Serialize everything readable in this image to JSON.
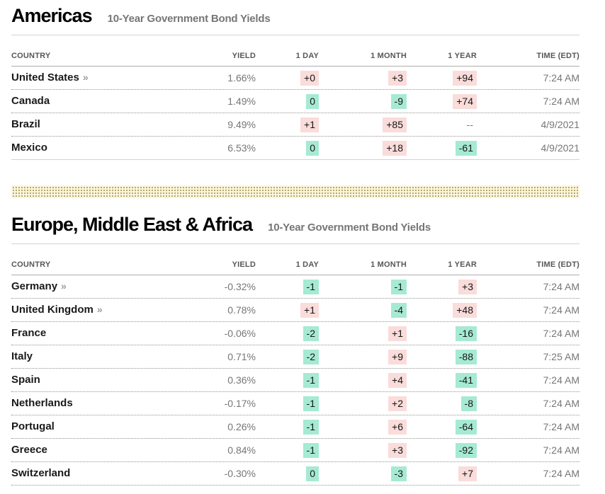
{
  "link_arrow": "»",
  "colors": {
    "increase_badge_bg": "#fadcda",
    "decrease_badge_bg": "#a6ead3",
    "divider_bg": "#fbf5dc",
    "divider_dot": "#a89c58"
  },
  "sections": [
    {
      "title": "Americas",
      "subtitle": "10-Year Government Bond Yields",
      "columns": [
        "COUNTRY",
        "YIELD",
        "1 DAY",
        "1 MONTH",
        "1 YEAR",
        "TIME (EDT)"
      ],
      "rows": [
        {
          "country": "United States",
          "has_link": true,
          "yield": "1.66%",
          "change_1day": {
            "text": "+0",
            "tone": "up"
          },
          "change_1month": {
            "text": "+3",
            "tone": "up"
          },
          "change_1year": {
            "text": "+94",
            "tone": "up"
          },
          "time": "7:24 AM"
        },
        {
          "country": "Canada",
          "has_link": false,
          "yield": "1.49%",
          "change_1day": {
            "text": "0",
            "tone": "down"
          },
          "change_1month": {
            "text": "-9",
            "tone": "down"
          },
          "change_1year": {
            "text": "+74",
            "tone": "up"
          },
          "time": "7:24 AM"
        },
        {
          "country": "Brazil",
          "has_link": false,
          "yield": "9.49%",
          "change_1day": {
            "text": "+1",
            "tone": "up"
          },
          "change_1month": {
            "text": "+85",
            "tone": "up"
          },
          "change_1year": {
            "text": "--",
            "tone": "none"
          },
          "time": "4/9/2021"
        },
        {
          "country": "Mexico",
          "has_link": false,
          "yield": "6.53%",
          "change_1day": {
            "text": "0",
            "tone": "down"
          },
          "change_1month": {
            "text": "+18",
            "tone": "up"
          },
          "change_1year": {
            "text": "-61",
            "tone": "down"
          },
          "time": "4/9/2021"
        }
      ],
      "solid_bottom_border": true
    },
    {
      "title": "Europe, Middle East & Africa",
      "subtitle": "10-Year Government Bond Yields",
      "columns": [
        "COUNTRY",
        "YIELD",
        "1 DAY",
        "1 MONTH",
        "1 YEAR",
        "TIME (EDT)"
      ],
      "rows": [
        {
          "country": "Germany",
          "has_link": true,
          "yield": "-0.32%",
          "change_1day": {
            "text": "-1",
            "tone": "down"
          },
          "change_1month": {
            "text": "-1",
            "tone": "down"
          },
          "change_1year": {
            "text": "+3",
            "tone": "up"
          },
          "time": "7:24 AM"
        },
        {
          "country": "United Kingdom",
          "has_link": true,
          "yield": "0.78%",
          "change_1day": {
            "text": "+1",
            "tone": "up"
          },
          "change_1month": {
            "text": "-4",
            "tone": "down"
          },
          "change_1year": {
            "text": "+48",
            "tone": "up"
          },
          "time": "7:24 AM"
        },
        {
          "country": "France",
          "has_link": false,
          "yield": "-0.06%",
          "change_1day": {
            "text": "-2",
            "tone": "down"
          },
          "change_1month": {
            "text": "+1",
            "tone": "up"
          },
          "change_1year": {
            "text": "-16",
            "tone": "down"
          },
          "time": "7:24 AM"
        },
        {
          "country": "Italy",
          "has_link": false,
          "yield": "0.71%",
          "change_1day": {
            "text": "-2",
            "tone": "down"
          },
          "change_1month": {
            "text": "+9",
            "tone": "up"
          },
          "change_1year": {
            "text": "-88",
            "tone": "down"
          },
          "time": "7:25 AM"
        },
        {
          "country": "Spain",
          "has_link": false,
          "yield": "0.36%",
          "change_1day": {
            "text": "-1",
            "tone": "down"
          },
          "change_1month": {
            "text": "+4",
            "tone": "up"
          },
          "change_1year": {
            "text": "-41",
            "tone": "down"
          },
          "time": "7:24 AM"
        },
        {
          "country": "Netherlands",
          "has_link": false,
          "yield": "-0.17%",
          "change_1day": {
            "text": "-1",
            "tone": "down"
          },
          "change_1month": {
            "text": "+2",
            "tone": "up"
          },
          "change_1year": {
            "text": "-8",
            "tone": "down"
          },
          "time": "7:24 AM"
        },
        {
          "country": "Portugal",
          "has_link": false,
          "yield": "0.26%",
          "change_1day": {
            "text": "-1",
            "tone": "down"
          },
          "change_1month": {
            "text": "+6",
            "tone": "up"
          },
          "change_1year": {
            "text": "-64",
            "tone": "down"
          },
          "time": "7:24 AM"
        },
        {
          "country": "Greece",
          "has_link": false,
          "yield": "0.84%",
          "change_1day": {
            "text": "-1",
            "tone": "down"
          },
          "change_1month": {
            "text": "+3",
            "tone": "up"
          },
          "change_1year": {
            "text": "-92",
            "tone": "down"
          },
          "time": "7:24 AM"
        },
        {
          "country": "Switzerland",
          "has_link": false,
          "yield": "-0.30%",
          "change_1day": {
            "text": "0",
            "tone": "down"
          },
          "change_1month": {
            "text": "-3",
            "tone": "down"
          },
          "change_1year": {
            "text": "+7",
            "tone": "up"
          },
          "time": "7:24 AM"
        }
      ],
      "solid_bottom_border": false
    }
  ]
}
